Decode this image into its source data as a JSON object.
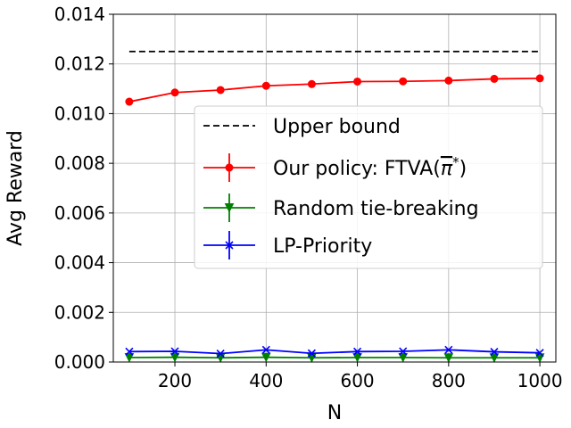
{
  "chart_data": {
    "type": "line",
    "title": "",
    "xlabel": "N",
    "ylabel": "Avg Reward",
    "xlim": [
      65,
      1035
    ],
    "ylim": [
      0,
      0.014
    ],
    "x_ticks": [
      200,
      400,
      600,
      800,
      1000
    ],
    "x_tick_labels": [
      "200",
      "400",
      "600",
      "800",
      "1000"
    ],
    "y_ticks": [
      0.0,
      0.002,
      0.004,
      0.006,
      0.008,
      0.01,
      0.012,
      0.014
    ],
    "y_tick_labels": [
      "0.000",
      "0.002",
      "0.004",
      "0.006",
      "0.008",
      "0.010",
      "0.012",
      "0.014"
    ],
    "grid": true,
    "legend_position": "center-right",
    "x": [
      100,
      200,
      300,
      400,
      500,
      600,
      700,
      800,
      900,
      1000
    ],
    "series": [
      {
        "name": "Upper bound",
        "color": "#000000",
        "style": "dashed",
        "marker": "none",
        "values": [
          0.0125,
          0.0125,
          0.0125,
          0.0125,
          0.0125,
          0.0125,
          0.0125,
          0.0125,
          0.0125,
          0.0125
        ]
      },
      {
        "name": "Our policy: FTVA(π̄*)",
        "legend_text_prefix": "Our policy: FTVA(",
        "legend_text_pi": "π",
        "legend_text_star": "*",
        "legend_text_suffix": ")",
        "color": "#ff0000",
        "style": "solid",
        "marker": "circle",
        "values": [
          0.01048,
          0.01085,
          0.01095,
          0.01112,
          0.01119,
          0.01129,
          0.0113,
          0.01133,
          0.0114,
          0.01142
        ]
      },
      {
        "name": "Random tie-breaking",
        "color": "#008000",
        "style": "solid",
        "marker": "triangle-down",
        "values": [
          0.00018,
          0.00019,
          0.00017,
          0.00019,
          0.00017,
          0.00018,
          0.00018,
          0.00017,
          0.00017,
          0.00017
        ]
      },
      {
        "name": "LP-Priority",
        "color": "#0000ff",
        "style": "solid",
        "marker": "x",
        "values": [
          0.00042,
          0.00043,
          0.00034,
          0.00049,
          0.00035,
          0.00042,
          0.00043,
          0.00049,
          0.00041,
          0.00037
        ]
      }
    ]
  }
}
